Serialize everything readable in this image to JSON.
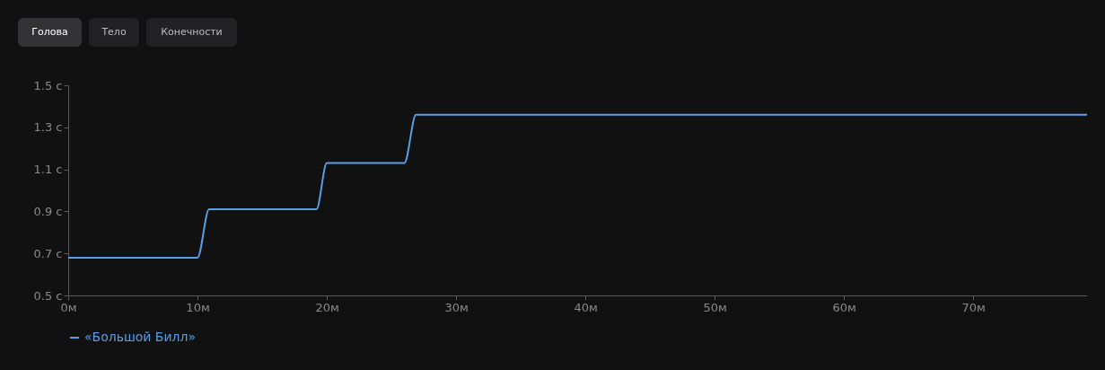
{
  "chart_data": {
    "type": "line",
    "annotations": [
      "Голова",
      "Тело",
      "Конечности"
    ],
    "series": [
      {
        "name": "«Большой Билл»",
        "color": "#5a9ee8",
        "x": [
          0,
          10,
          10.9,
          19.2,
          20,
          26,
          26.9,
          78.8
        ],
        "values": [
          0.68,
          0.68,
          0.91,
          0.91,
          1.13,
          1.13,
          1.36,
          1.36
        ]
      }
    ],
    "xlim": [
      0,
      78.8
    ],
    "xticks": [
      {
        "value": 0,
        "label": "0м"
      },
      {
        "value": 10,
        "label": "10м"
      },
      {
        "value": 20,
        "label": "20м"
      },
      {
        "value": 30,
        "label": "30м"
      },
      {
        "value": 40,
        "label": "40м"
      },
      {
        "value": 50,
        "label": "50м"
      },
      {
        "value": 60,
        "label": "60м"
      },
      {
        "value": 70,
        "label": "70м"
      }
    ],
    "ylim": [
      0.5,
      1.5
    ],
    "yticks": [
      {
        "value": 0.5,
        "label": "0.5 с"
      },
      {
        "value": 0.7,
        "label": "0.7 с"
      },
      {
        "value": 0.9,
        "label": "0.9 с"
      },
      {
        "value": 1.1,
        "label": "1.1 с"
      },
      {
        "value": 1.3,
        "label": "1.3 с"
      },
      {
        "value": 1.5,
        "label": "1.5 с"
      }
    ],
    "grid": false,
    "legend": "bottom",
    "marker": "none",
    "line_style": "solid"
  }
}
